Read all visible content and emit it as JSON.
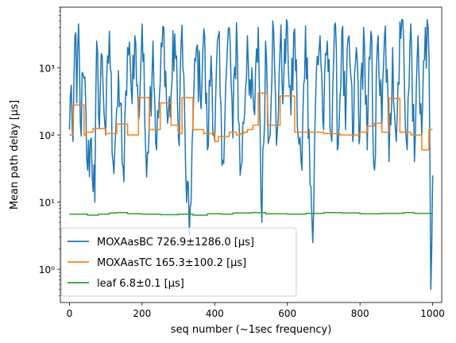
{
  "chart_data": {
    "type": "line",
    "title": "",
    "xlabel": "seq number (~1sec frequency)",
    "ylabel": "Mean path delay [μs]",
    "xlim": [
      -25,
      1025
    ],
    "ylim": [
      0.32,
      8000
    ],
    "yscale": "log",
    "xticks": [
      0,
      200,
      400,
      600,
      800,
      1000
    ],
    "xtick_labels": [
      "0",
      "200",
      "400",
      "600",
      "800",
      "1000"
    ],
    "yticks": [
      1,
      10,
      100,
      1000
    ],
    "ytick_labels": [
      "10⁰",
      "10¹",
      "10²",
      "10³"
    ],
    "legend": {
      "placement": "lower-left",
      "entries": [
        "MOXAasBC 726.9±1286.0 [μs]",
        "MOXAasTC 165.3±100.2 [μs]",
        "leaf 6.8±0.1 [μs]"
      ]
    },
    "series": [
      {
        "name": "MOXAasBC 726.9±1286.0 [μs]",
        "color": "#1f77b4",
        "style": "noisy",
        "x": [
          0,
          5,
          10,
          15,
          20,
          25,
          30,
          40,
          50,
          60,
          70,
          75,
          80,
          90,
          100,
          110,
          120,
          130,
          140,
          150,
          160,
          170,
          180,
          190,
          200,
          210,
          220,
          230,
          240,
          250,
          260,
          270,
          280,
          290,
          300,
          310,
          320,
          330,
          340,
          350,
          360,
          370,
          380,
          390,
          400,
          410,
          420,
          430,
          440,
          450,
          460,
          470,
          480,
          490,
          500,
          510,
          520,
          530,
          540,
          550,
          560,
          570,
          580,
          590,
          600,
          610,
          620,
          630,
          640,
          650,
          660,
          670,
          680,
          690,
          700,
          710,
          720,
          730,
          740,
          750,
          760,
          770,
          780,
          790,
          800,
          810,
          820,
          830,
          840,
          850,
          860,
          870,
          880,
          890,
          900,
          910,
          920,
          930,
          940,
          950,
          960,
          970,
          980,
          990,
          995,
          1000
        ],
        "y": [
          120,
          550,
          80,
          3000,
          300,
          4500,
          150,
          700,
          30,
          90,
          10,
          2500,
          200,
          1500,
          100,
          3500,
          40,
          250,
          300,
          20,
          2000,
          500,
          3000,
          160,
          4500,
          60,
          180,
          2500,
          60,
          600,
          4000,
          150,
          400,
          3200,
          90,
          4300,
          30,
          3.2,
          150,
          2000,
          400,
          3800,
          60,
          1500,
          80,
          3000,
          35,
          500,
          4000,
          90,
          4700,
          25,
          150,
          3000,
          350,
          200,
          4000,
          5,
          2500,
          90,
          5000,
          70,
          2000,
          600,
          4700,
          200,
          3800,
          90,
          30,
          4200,
          120,
          2.5,
          900,
          3000,
          120,
          2500,
          100,
          4300,
          70,
          3500,
          120,
          3000,
          80,
          2000,
          100,
          4000,
          60,
          3500,
          30,
          3000,
          120,
          4200,
          40,
          2000,
          80,
          4800,
          3000,
          60,
          4500,
          40,
          3000,
          100,
          4000,
          1500,
          0.5,
          25
        ]
      },
      {
        "name": "MOXAasTC 165.3±100.2 [μs]",
        "color": "#ff7f0e",
        "style": "step",
        "x": [
          0,
          10,
          40,
          45,
          65,
          100,
          130,
          160,
          190,
          220,
          250,
          280,
          300,
          310,
          340,
          370,
          400,
          410,
          440,
          460,
          470,
          480,
          490,
          505,
          520,
          545,
          580,
          620,
          700,
          745,
          800,
          820,
          840,
          860,
          880,
          910,
          940,
          970,
          990,
          1000
        ],
        "y": [
          100,
          280,
          100,
          110,
          125,
          105,
          145,
          100,
          360,
          120,
          300,
          140,
          105,
          360,
          120,
          105,
          80,
          95,
          110,
          100,
          105,
          110,
          120,
          140,
          420,
          140,
          380,
          110,
          105,
          100,
          110,
          135,
          150,
          110,
          350,
          110,
          100,
          60,
          120,
          120
        ]
      },
      {
        "name": "leaf 6.8±0.1 [μs]",
        "color": "#2ca02c",
        "style": "step",
        "x": [
          0,
          50,
          80,
          110,
          130,
          160,
          200,
          250,
          300,
          340,
          380,
          420,
          450,
          500,
          540,
          600,
          650,
          700,
          750,
          800,
          860,
          920,
          950,
          1000
        ],
        "y": [
          6.6,
          6.4,
          6.6,
          6.9,
          7.0,
          6.7,
          6.6,
          6.5,
          6.6,
          6.4,
          6.7,
          6.6,
          6.9,
          7.0,
          6.7,
          6.6,
          6.8,
          7.0,
          6.9,
          6.7,
          6.8,
          7.0,
          6.8,
          6.8
        ]
      }
    ]
  }
}
